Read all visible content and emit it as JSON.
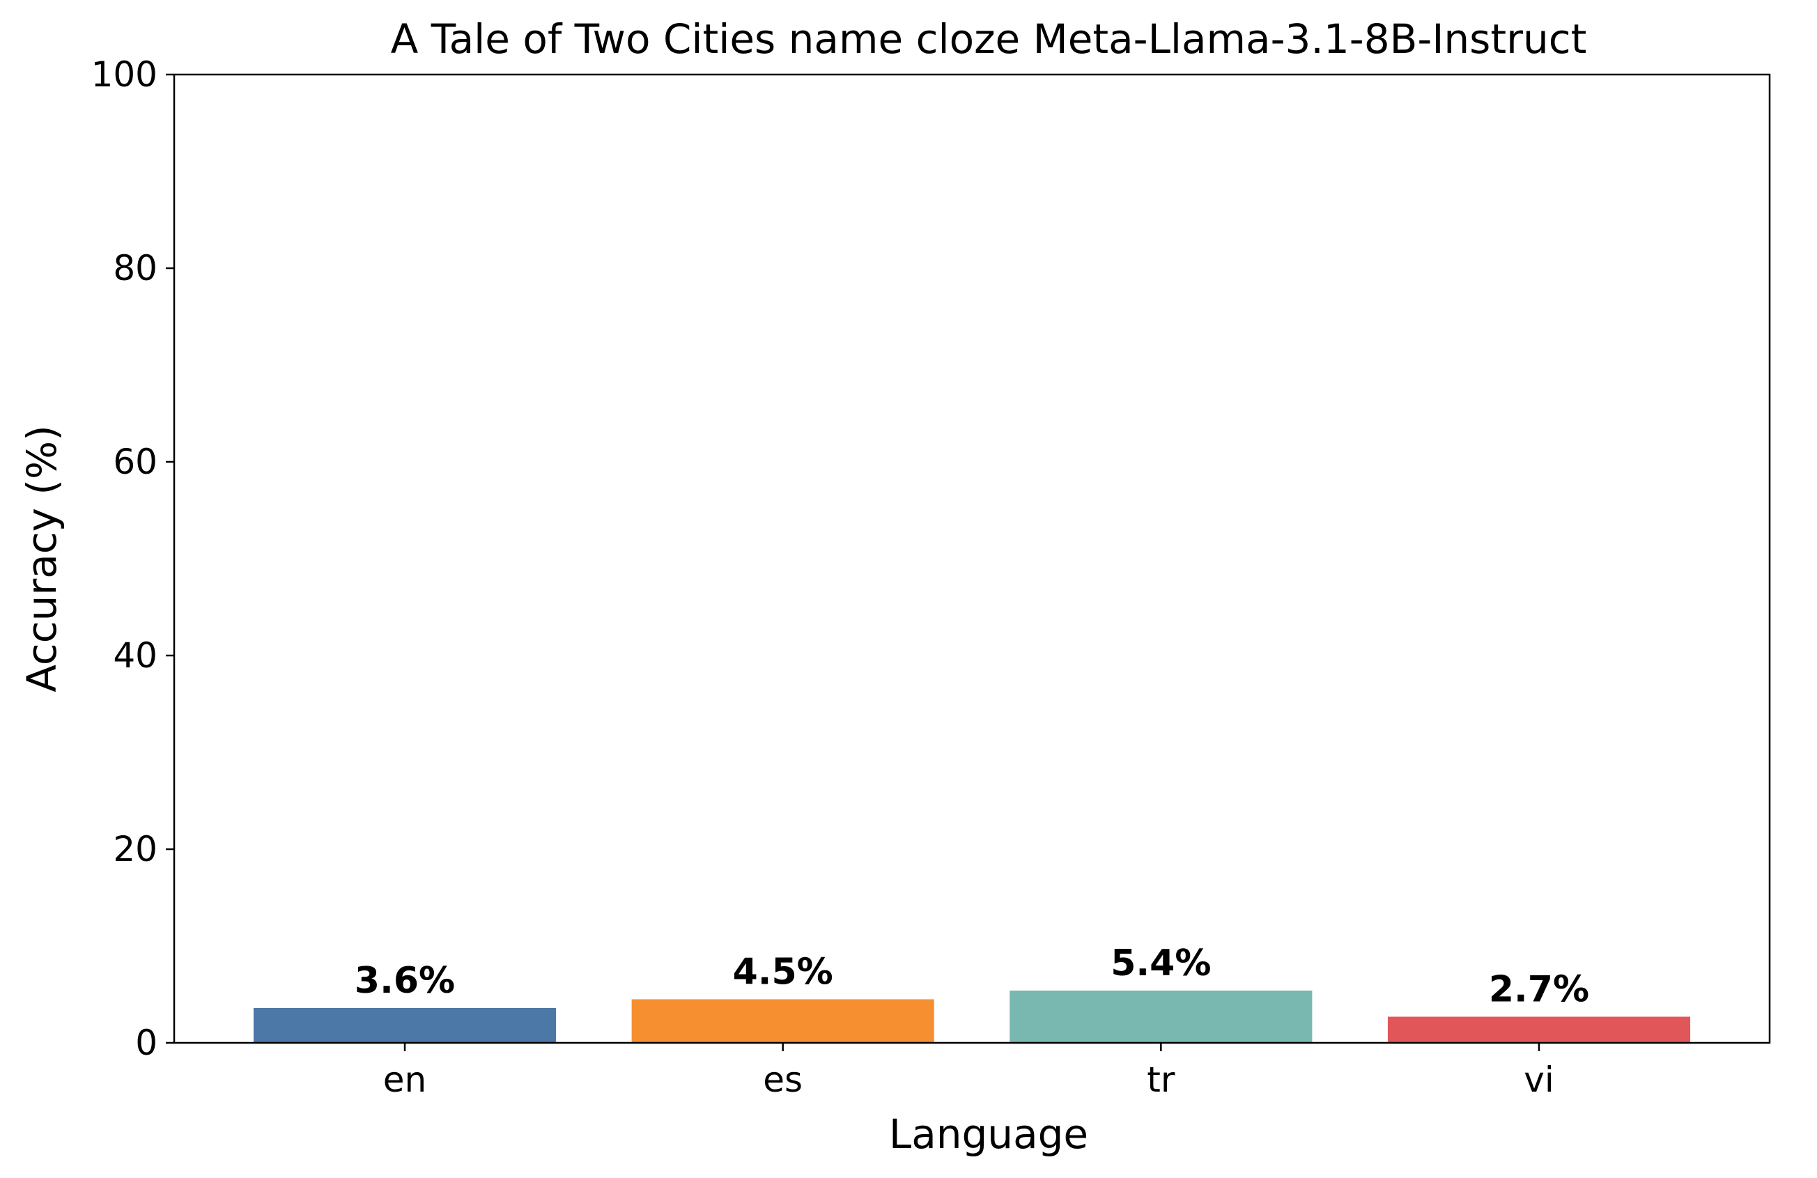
{
  "chart_data": {
    "type": "bar",
    "title": "A Tale of Two Cities name cloze Meta-Llama-3.1-8B-Instruct",
    "xlabel": "Language",
    "ylabel": "Accuracy (%)",
    "categories": [
      "en",
      "es",
      "tr",
      "vi"
    ],
    "values": [
      3.6,
      4.5,
      5.4,
      2.7
    ],
    "data_labels": [
      "3.6%",
      "4.5%",
      "5.4%",
      "2.7%"
    ],
    "colors": [
      "#4c78a8",
      "#f58f2f",
      "#79b8b1",
      "#e15759"
    ],
    "ylim": [
      0,
      100
    ],
    "yticks": [
      0,
      20,
      40,
      60,
      80,
      100
    ],
    "grid": false,
    "legend": "none"
  }
}
